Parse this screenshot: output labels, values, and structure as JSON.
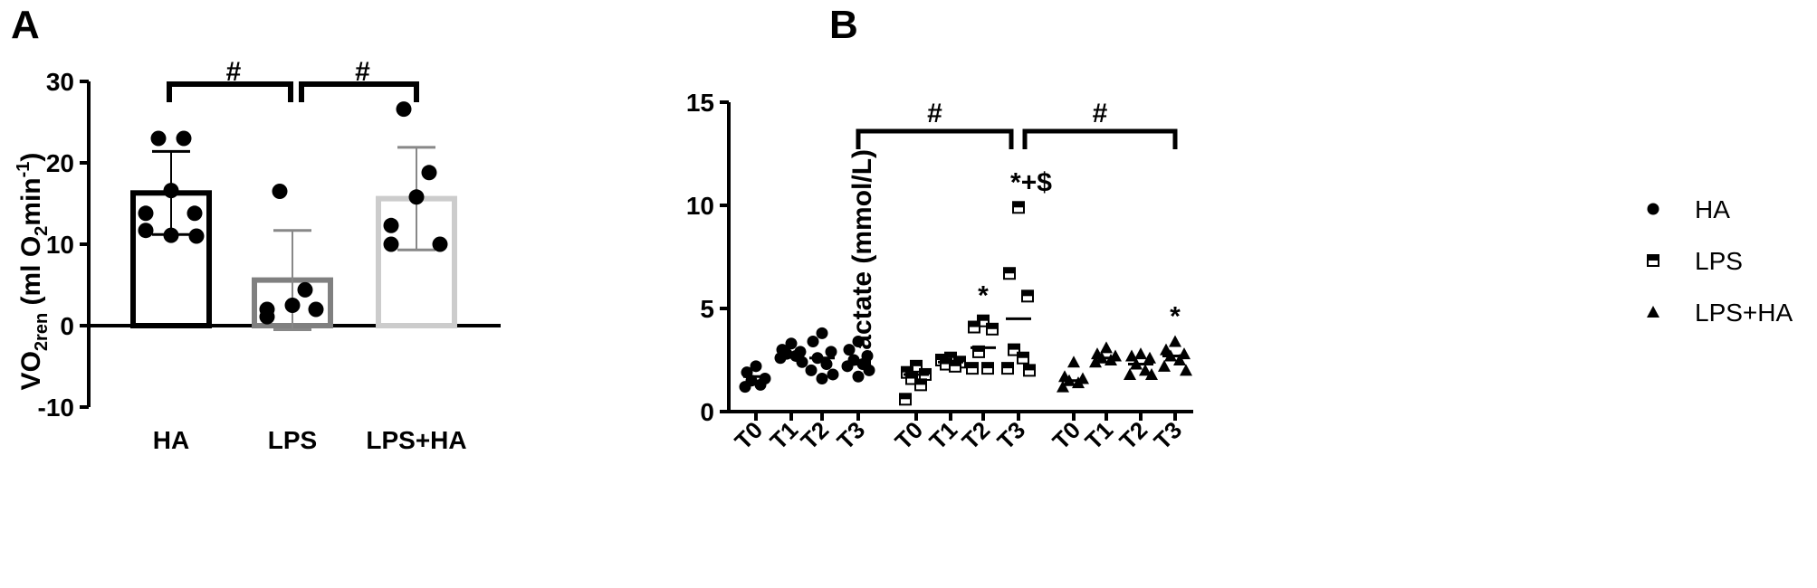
{
  "chart_data": [
    {
      "panel_label": "A",
      "type": "bar",
      "ylabel": {
        "main": "VO",
        "sub": "2ren",
        "unit_open": " (ml O",
        "unit_sub": "2",
        "unit_mid": "min",
        "unit_sup": "-1",
        "unit_close": ")"
      },
      "ylim": [
        -10,
        30
      ],
      "yticks": [
        "30",
        "20",
        "10",
        "0",
        "-10"
      ],
      "categories": [
        "HA",
        "LPS",
        "LPS+HA"
      ],
      "bar_colors": [
        "#000000",
        "#808080",
        "#cccccc"
      ],
      "values": [
        16.3,
        5.6,
        15.6
      ],
      "sd": [
        5.1,
        6.1,
        6.3
      ],
      "points": [
        [
          23.0,
          23.0,
          16.6,
          13.8,
          13.8,
          11.7,
          11.0,
          11.1
        ],
        [
          16.5,
          4.4,
          2.5,
          2.0,
          2.0,
          1.1
        ],
        [
          26.6,
          18.8,
          15.8,
          12.3,
          10.0,
          10.0
        ]
      ],
      "significance": [
        "#",
        "#"
      ]
    },
    {
      "panel_label": "B",
      "type": "scatter",
      "ylabel": "Lactate (mmol/L)",
      "ylim": [
        0,
        15
      ],
      "yticks": [
        "15",
        "10",
        "5",
        "0"
      ],
      "xticks": [
        "T0",
        "T1",
        "T2",
        "T3",
        "T0",
        "T1",
        "T2",
        "T3",
        "T0",
        "T1",
        "T2",
        "T3"
      ],
      "series": [
        {
          "name": "HA",
          "marker": "circle",
          "medians": [
            1.7,
            2.8,
            2.6,
            2.3
          ],
          "points": [
            [
              2.2,
              1.9,
              1.6,
              1.5,
              1.3,
              1.2
            ],
            [
              3.3,
              3.0,
              2.9,
              2.8,
              2.7,
              2.6,
              2.4
            ],
            [
              3.8,
              3.4,
              2.9,
              2.6,
              2.3,
              2.0,
              1.8,
              1.6
            ],
            [
              3.4,
              3.0,
              2.7,
              2.5,
              2.3,
              2.2,
              2.0,
              1.7
            ]
          ]
        },
        {
          "name": "LPS",
          "marker": "half-square",
          "medians": [
            1.8,
            2.4,
            3.1,
            4.5
          ],
          "points": [
            [
              2.2,
              1.9,
              1.8,
              1.6,
              1.3,
              0.6
            ],
            [
              2.6,
              2.5,
              2.4,
              2.3,
              2.2
            ],
            [
              4.4,
              4.1,
              4.0,
              2.9,
              2.1,
              2.1
            ],
            [
              9.9,
              6.7,
              5.6,
              3.0,
              2.6,
              2.1,
              2.0
            ]
          ]
        },
        {
          "name": "LPS+HA",
          "marker": "triangle",
          "medians": [
            1.5,
            2.6,
            2.3,
            2.7
          ],
          "points": [
            [
              2.4,
              1.7,
              1.6,
              1.5,
              1.4,
              1.2
            ],
            [
              3.1,
              2.8,
              2.7,
              2.6,
              2.5,
              2.4
            ],
            [
              2.8,
              2.7,
              2.6,
              2.3,
              2.0,
              1.8,
              1.8
            ],
            [
              3.4,
              3.0,
              2.8,
              2.7,
              2.5,
              2.2,
              2.0
            ]
          ]
        }
      ],
      "annotations": [
        {
          "text": "*",
          "group": 1,
          "time": 2
        },
        {
          "text": "*+$",
          "group": 1,
          "time": 3
        },
        {
          "text": "*",
          "group": 2,
          "time": 3
        }
      ],
      "significance": [
        "#",
        "#"
      ],
      "legend_position": "right"
    }
  ]
}
